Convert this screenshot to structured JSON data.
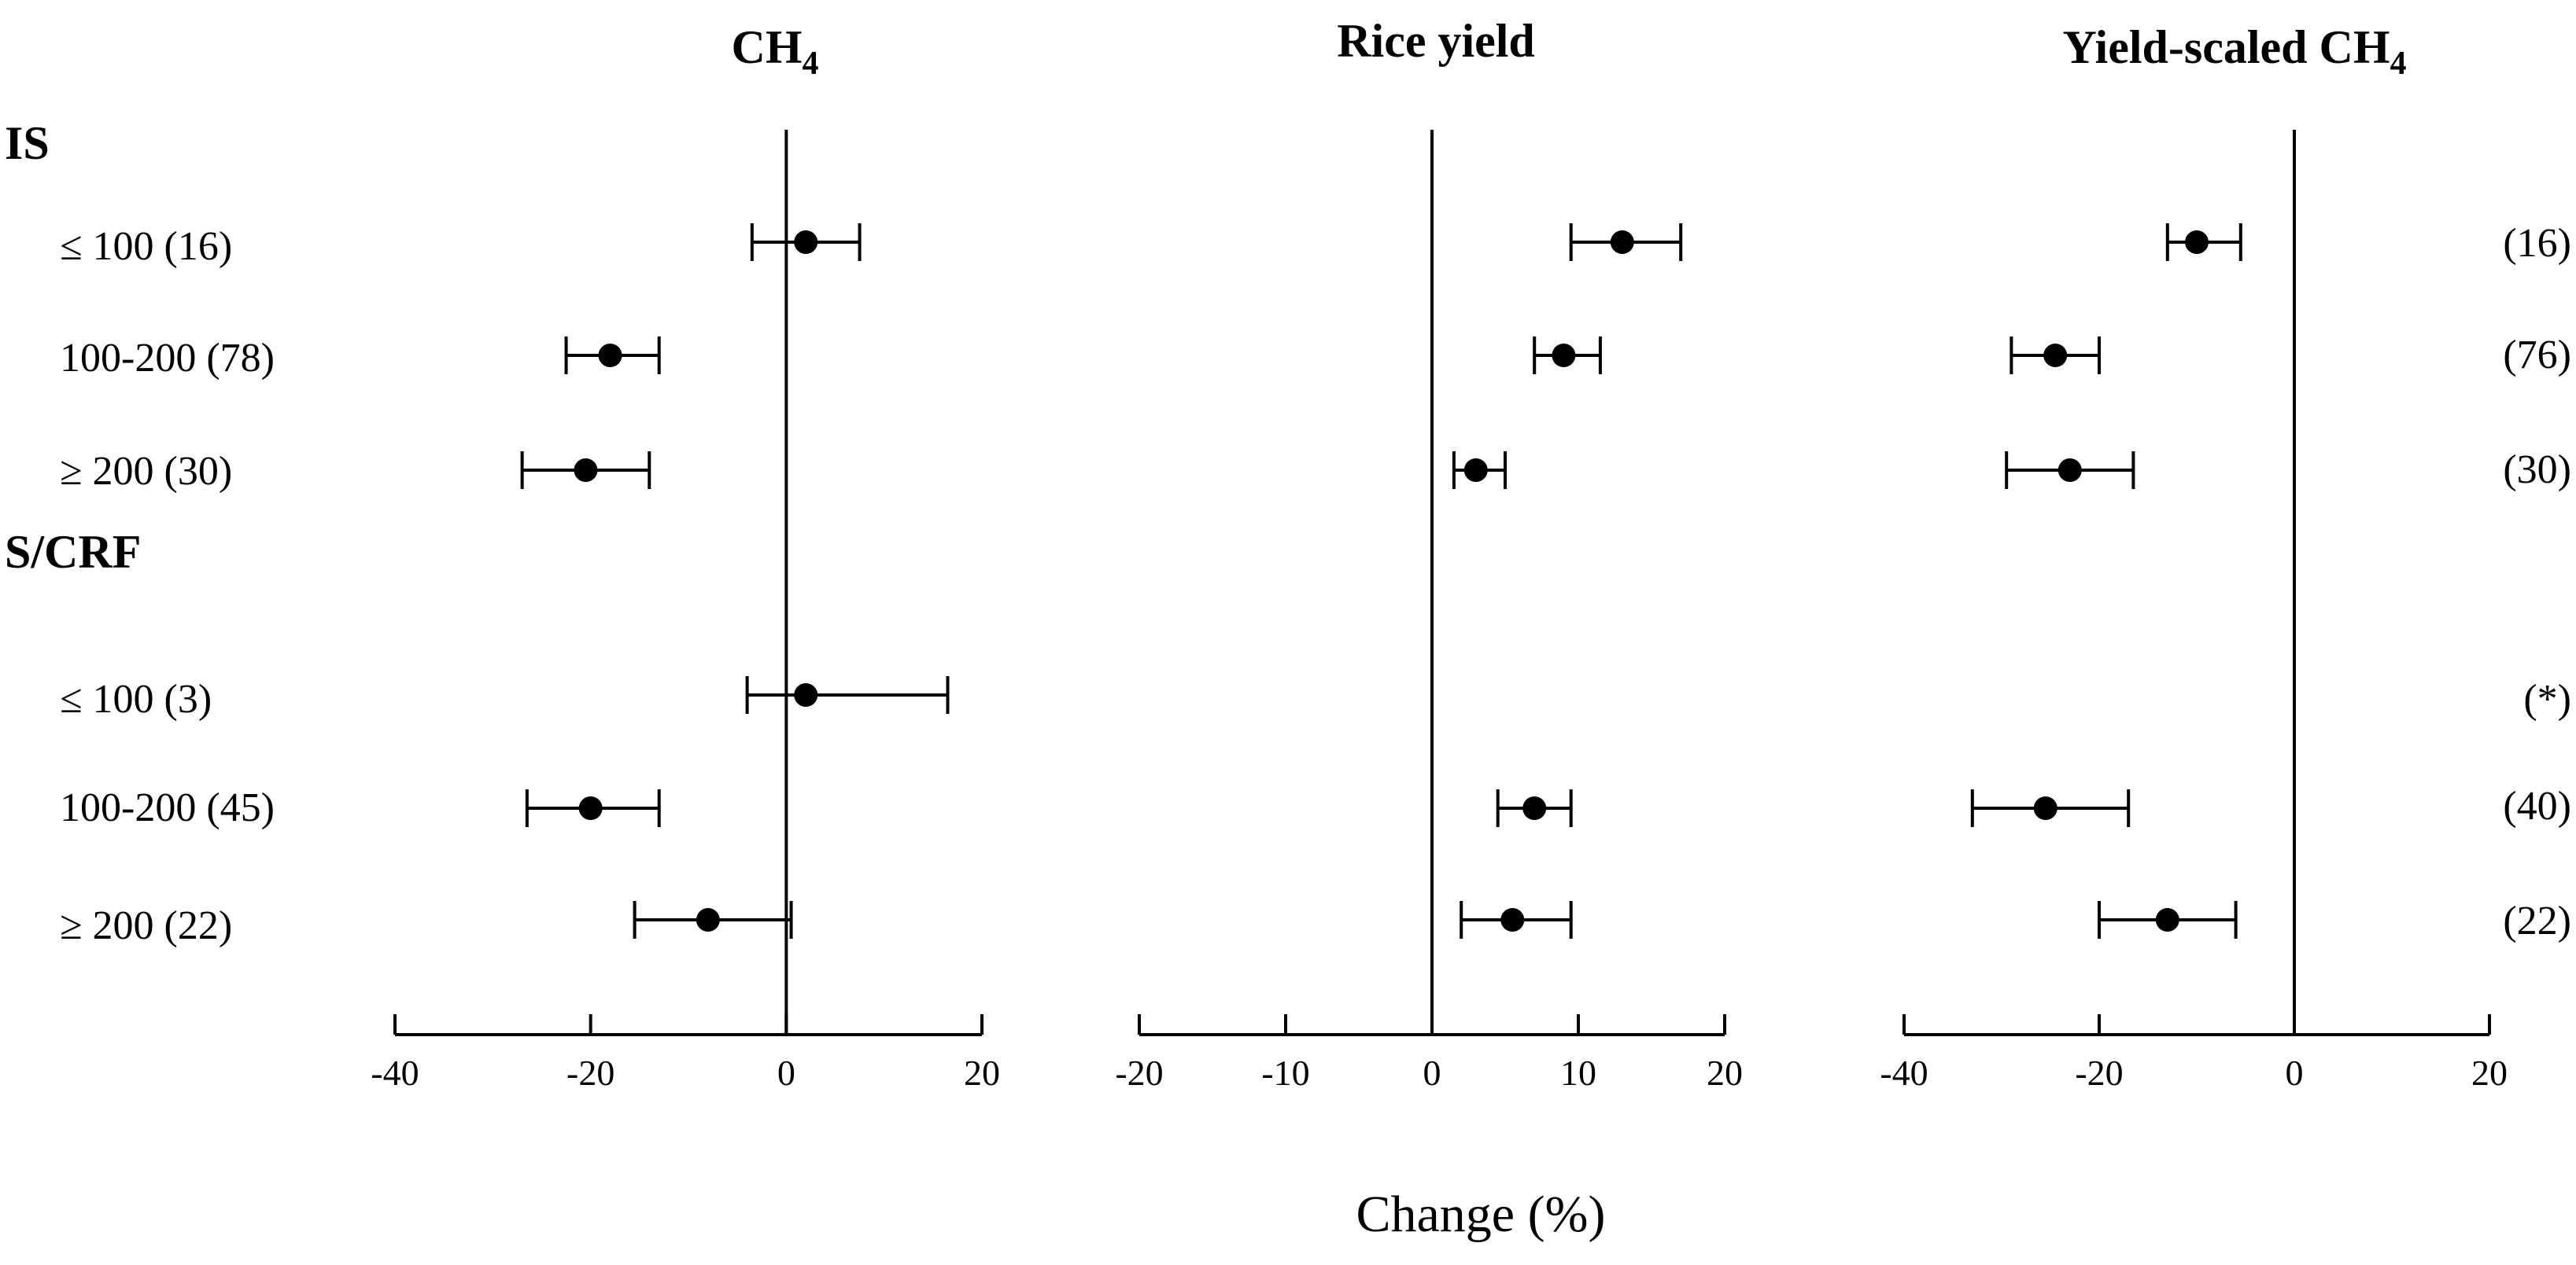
{
  "groups": [
    {
      "label": "IS",
      "rows": [
        0,
        1,
        2
      ]
    },
    {
      "label": "S/CRF",
      "rows": [
        3,
        4,
        5
      ]
    }
  ],
  "row_labels": [
    "≤ 100 (16)",
    "100-200 (78)",
    "≥ 200 (30)",
    "≤ 100 (3)",
    "100-200 (45)",
    "≥ 200 (22)"
  ],
  "right_counts": [
    "(16)",
    "(76)",
    "(30)",
    "(*)",
    "(40)",
    "(22)"
  ],
  "xlabel": "Change (%)",
  "colors": {
    "marks": "#000000",
    "background": "#ffffff"
  },
  "chart_data": [
    {
      "type": "forest",
      "title": "CH",
      "title_subscript": "4",
      "xlim": [
        -40,
        20
      ],
      "ticks": [
        -40,
        -20,
        0,
        20
      ],
      "tick_labels": [
        "-40",
        "-20",
        "0",
        "20"
      ],
      "reference_line": 0,
      "points": [
        {
          "estimate": 2,
          "low": -3.5,
          "high": 7.5
        },
        {
          "estimate": -18,
          "low": -22.5,
          "high": -13
        },
        {
          "estimate": -20.5,
          "low": -27,
          "high": -14
        },
        {
          "estimate": 2,
          "low": -4,
          "high": 16.5
        },
        {
          "estimate": -20,
          "low": -26.5,
          "high": -13
        },
        {
          "estimate": -8,
          "low": -15.5,
          "high": 0.5
        }
      ]
    },
    {
      "type": "forest",
      "title": "Rice yield",
      "title_subscript": "",
      "xlim": [
        -20,
        20
      ],
      "ticks": [
        -20,
        -10,
        0,
        10,
        20
      ],
      "tick_labels": [
        "-20",
        "-10",
        "0",
        "10",
        "20"
      ],
      "reference_line": 0,
      "points": [
        {
          "estimate": 13,
          "low": 9.5,
          "high": 17
        },
        {
          "estimate": 9,
          "low": 7,
          "high": 11.5
        },
        {
          "estimate": 3,
          "low": 1.5,
          "high": 5
        },
        null,
        {
          "estimate": 7,
          "low": 4.5,
          "high": 9.5
        },
        {
          "estimate": 5.5,
          "low": 2,
          "high": 9.5
        }
      ]
    },
    {
      "type": "forest",
      "title": "Yield-scaled CH",
      "title_subscript": "4",
      "xlim": [
        -40,
        20
      ],
      "ticks": [
        -40,
        -20,
        0,
        20
      ],
      "tick_labels": [
        "-40",
        "-20",
        "0",
        "20"
      ],
      "reference_line": 0,
      "points": [
        {
          "estimate": -10,
          "low": -13,
          "high": -5.5
        },
        {
          "estimate": -24.5,
          "low": -29,
          "high": -20
        },
        {
          "estimate": -23,
          "low": -29.5,
          "high": -16.5
        },
        null,
        {
          "estimate": -25.5,
          "low": -33,
          "high": -17
        },
        {
          "estimate": -13,
          "low": -20,
          "high": -6
        }
      ]
    }
  ]
}
